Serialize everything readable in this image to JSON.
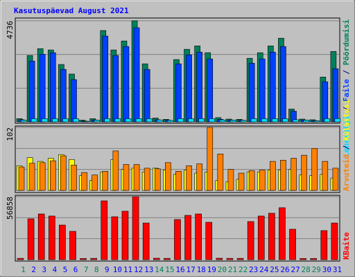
{
  "title": "Kasutuspäevad August 2021",
  "legend_separator": " / ",
  "chart_data": [
    {
      "type": "bar",
      "ylim": [
        0,
        4736
      ],
      "yticks": [
        4736
      ],
      "series": [
        {
          "name": "Pöördumisi",
          "color": "#00805c",
          "values": [
            150,
            3110,
            3430,
            3370,
            2690,
            2240,
            80,
            150,
            4280,
            3370,
            3790,
            4736,
            2720,
            180,
            120,
            2920,
            3400,
            3560,
            3240,
            200,
            130,
            120,
            2980,
            3240,
            3560,
            3920,
            600,
            130,
            100,
            2100,
            3300
          ]
        },
        {
          "name": "Faile",
          "color": "#0040ff",
          "values": [
            100,
            2850,
            3170,
            3240,
            2460,
            1980,
            40,
            90,
            4020,
            3110,
            3530,
            4410,
            2460,
            100,
            80,
            2720,
            3140,
            3270,
            2950,
            120,
            90,
            80,
            2750,
            2950,
            3270,
            3530,
            500,
            90,
            60,
            1880,
            2490
          ]
        },
        {
          "name": "Lehekülgi",
          "color": "#00e0ff",
          "values": [
            80,
            150,
            150,
            150,
            150,
            150,
            30,
            80,
            150,
            150,
            150,
            150,
            150,
            90,
            70,
            150,
            150,
            150,
            150,
            90,
            80,
            70,
            150,
            150,
            150,
            150,
            100,
            80,
            50,
            150,
            150
          ]
        }
      ]
    },
    {
      "type": "bar",
      "ylim": [
        0,
        102
      ],
      "yticks": [
        102
      ],
      "series": [
        {
          "name": "Külastusi",
          "color": "#ffff00",
          "values": [
            40,
            53,
            47,
            52,
            58,
            50,
            24,
            16,
            30,
            50,
            34,
            36,
            30,
            36,
            33,
            26,
            33,
            28,
            30,
            16,
            14,
            18,
            30,
            30,
            33,
            33,
            34,
            25,
            24,
            26,
            20
          ]
        },
        {
          "name": "Arvuteid",
          "color": "#ff8000",
          "values": [
            38,
            44,
            45,
            48,
            56,
            41,
            29,
            25,
            31,
            64,
            42,
            42,
            36,
            35,
            45,
            31,
            40,
            43,
            102,
            59,
            34,
            28,
            32,
            33,
            47,
            49,
            52,
            57,
            68,
            47,
            36
          ]
        }
      ]
    },
    {
      "type": "bar",
      "ylim": [
        0,
        56858
      ],
      "yticks": [
        56858
      ],
      "categories": [
        "1",
        "2",
        "3",
        "4",
        "5",
        "6",
        "7",
        "8",
        "9",
        "10",
        "11",
        "12",
        "13",
        "14",
        "15",
        "16",
        "17",
        "18",
        "19",
        "20",
        "21",
        "22",
        "23",
        "24",
        "25",
        "26",
        "27",
        "28",
        "29",
        "30",
        "31"
      ],
      "label_color": "#0000ff",
      "highlight_color": "#00805c",
      "highlighted": [
        0,
        6,
        7,
        13,
        14,
        19,
        20,
        21,
        27,
        28
      ],
      "series": [
        {
          "name": "KBaite",
          "color": "#ff0000",
          "values": [
            1200,
            36900,
            41250,
            39400,
            31250,
            25600,
            1100,
            1200,
            53100,
            38750,
            43750,
            56858,
            33100,
            1300,
            1200,
            36250,
            40000,
            41250,
            33750,
            1300,
            1200,
            1200,
            34400,
            39400,
            41900,
            46900,
            27500,
            1100,
            1100,
            26250,
            33100
          ]
        }
      ]
    }
  ]
}
